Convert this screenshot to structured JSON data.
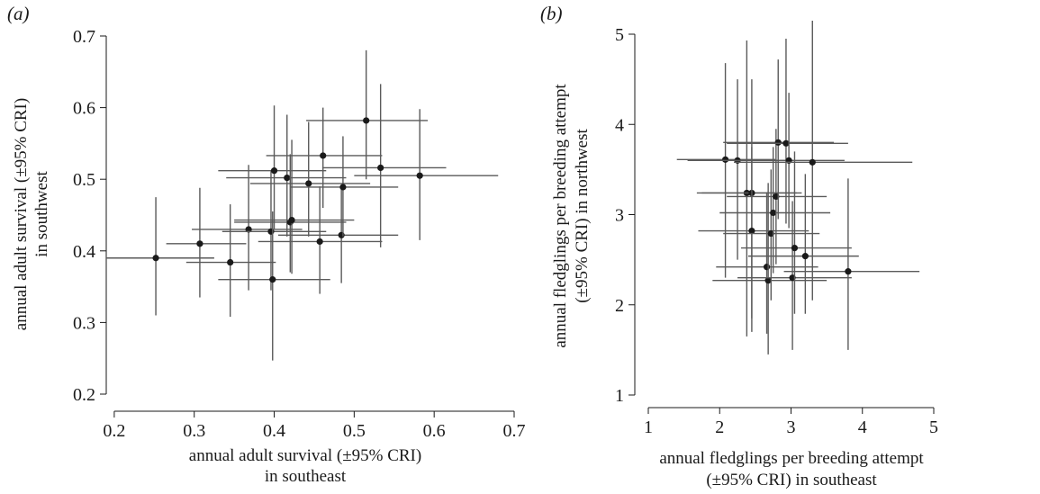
{
  "chart_data": [
    {
      "type": "scatter",
      "panel_label": "(a)",
      "xlabel": [
        "annual adult survival (±95% CRI)",
        "in southeast"
      ],
      "ylabel": [
        "annual adult survival (±95% CRI)",
        "in southwest"
      ],
      "xlim": [
        0.19,
        0.7
      ],
      "ylim": [
        0.2,
        0.7
      ],
      "xticks": [
        "0.2",
        "0.3",
        "0.4",
        "0.5",
        "0.6",
        "0.7"
      ],
      "yticks": [
        "0.2",
        "0.3",
        "0.4",
        "0.5",
        "0.6",
        "0.7"
      ],
      "series": [
        {
          "points": [
            {
              "x": 0.252,
              "y": 0.39,
              "xlo": 0.19,
              "xhi": 0.325,
              "ylo": 0.31,
              "yhi": 0.475
            },
            {
              "x": 0.307,
              "y": 0.41,
              "xlo": 0.265,
              "xhi": 0.365,
              "ylo": 0.335,
              "yhi": 0.488
            },
            {
              "x": 0.345,
              "y": 0.384,
              "xlo": 0.29,
              "xhi": 0.402,
              "ylo": 0.308,
              "yhi": 0.465
            },
            {
              "x": 0.368,
              "y": 0.43,
              "xlo": 0.297,
              "xhi": 0.435,
              "ylo": 0.345,
              "yhi": 0.52
            },
            {
              "x": 0.396,
              "y": 0.427,
              "xlo": 0.335,
              "xhi": 0.465,
              "ylo": 0.345,
              "yhi": 0.512
            },
            {
              "x": 0.398,
              "y": 0.36,
              "xlo": 0.33,
              "xhi": 0.47,
              "ylo": 0.247,
              "yhi": 0.455
            },
            {
              "x": 0.4,
              "y": 0.512,
              "xlo": 0.33,
              "xhi": 0.465,
              "ylo": 0.43,
              "yhi": 0.603
            },
            {
              "x": 0.416,
              "y": 0.502,
              "xlo": 0.34,
              "xhi": 0.49,
              "ylo": 0.42,
              "yhi": 0.59
            },
            {
              "x": 0.42,
              "y": 0.44,
              "xlo": 0.35,
              "xhi": 0.49,
              "ylo": 0.37,
              "yhi": 0.535
            },
            {
              "x": 0.422,
              "y": 0.443,
              "xlo": 0.35,
              "xhi": 0.5,
              "ylo": 0.368,
              "yhi": 0.555
            },
            {
              "x": 0.443,
              "y": 0.494,
              "xlo": 0.37,
              "xhi": 0.52,
              "ylo": 0.42,
              "yhi": 0.58
            },
            {
              "x": 0.457,
              "y": 0.413,
              "xlo": 0.38,
              "xhi": 0.535,
              "ylo": 0.34,
              "yhi": 0.49
            },
            {
              "x": 0.461,
              "y": 0.533,
              "xlo": 0.39,
              "xhi": 0.535,
              "ylo": 0.46,
              "yhi": 0.6
            },
            {
              "x": 0.484,
              "y": 0.422,
              "xlo": 0.405,
              "xhi": 0.555,
              "ylo": 0.355,
              "yhi": 0.49
            },
            {
              "x": 0.486,
              "y": 0.489,
              "xlo": 0.42,
              "xhi": 0.555,
              "ylo": 0.42,
              "yhi": 0.56
            },
            {
              "x": 0.515,
              "y": 0.582,
              "xlo": 0.44,
              "xhi": 0.592,
              "ylo": 0.5,
              "yhi": 0.68
            },
            {
              "x": 0.533,
              "y": 0.516,
              "xlo": 0.46,
              "xhi": 0.615,
              "ylo": 0.405,
              "yhi": 0.633
            },
            {
              "x": 0.582,
              "y": 0.505,
              "xlo": 0.5,
              "xhi": 0.68,
              "ylo": 0.415,
              "yhi": 0.598
            }
          ]
        }
      ]
    },
    {
      "type": "scatter",
      "panel_label": "(b)",
      "xlabel": [
        "annual fledglings per breeding attempt",
        "(±95% CRI) in southeast"
      ],
      "ylabel": [
        "annual fledglings per breeding attempt",
        "(±95% CRI) in northwest"
      ],
      "xlim": [
        1,
        5
      ],
      "ylim": [
        1,
        5
      ],
      "xticks": [
        "1",
        "2",
        "3",
        "4",
        "5"
      ],
      "yticks": [
        "1",
        "2",
        "3",
        "4",
        "5"
      ],
      "series": [
        {
          "points": [
            {
              "x": 2.08,
              "y": 3.61,
              "xlo": 1.4,
              "xhi": 2.78,
              "ylo": 2.3,
              "yhi": 4.68
            },
            {
              "x": 2.25,
              "y": 3.6,
              "xlo": 1.55,
              "xhi": 2.95,
              "ylo": 2.5,
              "yhi": 4.5
            },
            {
              "x": 2.38,
              "y": 3.24,
              "xlo": 1.68,
              "xhi": 3.08,
              "ylo": 1.65,
              "yhi": 4.93
            },
            {
              "x": 2.45,
              "y": 3.24,
              "xlo": 1.75,
              "xhi": 3.15,
              "ylo": 1.7,
              "yhi": 4.5
            },
            {
              "x": 2.45,
              "y": 2.82,
              "xlo": 1.7,
              "xhi": 3.25,
              "ylo": 1.85,
              "yhi": 3.75
            },
            {
              "x": 2.66,
              "y": 2.42,
              "xlo": 1.95,
              "xhi": 3.38,
              "ylo": 1.68,
              "yhi": 3.25
            },
            {
              "x": 2.68,
              "y": 2.27,
              "xlo": 1.9,
              "xhi": 3.5,
              "ylo": 1.45,
              "yhi": 3.35
            },
            {
              "x": 2.72,
              "y": 2.79,
              "xlo": 2.05,
              "xhi": 3.4,
              "ylo": 2.05,
              "yhi": 3.5
            },
            {
              "x": 2.75,
              "y": 3.02,
              "xlo": 2.0,
              "xhi": 3.55,
              "ylo": 2.35,
              "yhi": 3.75
            },
            {
              "x": 2.79,
              "y": 3.2,
              "xlo": 2.1,
              "xhi": 3.5,
              "ylo": 2.45,
              "yhi": 3.95
            },
            {
              "x": 2.82,
              "y": 3.8,
              "xlo": 2.05,
              "xhi": 3.6,
              "ylo": 2.95,
              "yhi": 4.72
            },
            {
              "x": 2.93,
              "y": 3.79,
              "xlo": 2.1,
              "xhi": 3.8,
              "ylo": 2.9,
              "yhi": 4.95
            },
            {
              "x": 2.97,
              "y": 3.6,
              "xlo": 2.2,
              "xhi": 3.75,
              "ylo": 2.85,
              "yhi": 4.35
            },
            {
              "x": 3.02,
              "y": 2.3,
              "xlo": 2.25,
              "xhi": 3.85,
              "ylo": 1.5,
              "yhi": 3.15
            },
            {
              "x": 3.05,
              "y": 2.63,
              "xlo": 2.3,
              "xhi": 3.85,
              "ylo": 1.9,
              "yhi": 3.7
            },
            {
              "x": 3.2,
              "y": 2.54,
              "xlo": 2.4,
              "xhi": 3.95,
              "ylo": 1.9,
              "yhi": 3.45
            },
            {
              "x": 3.3,
              "y": 3.58,
              "xlo": 2.2,
              "xhi": 4.7,
              "ylo": 2.05,
              "yhi": 5.15
            },
            {
              "x": 3.8,
              "y": 2.37,
              "xlo": 2.9,
              "xhi": 4.8,
              "ylo": 1.5,
              "yhi": 3.4
            }
          ]
        }
      ]
    }
  ]
}
